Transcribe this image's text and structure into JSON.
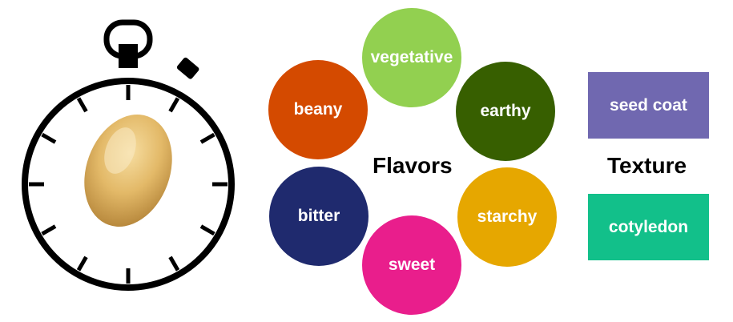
{
  "flavors": {
    "label": "Flavors",
    "items": [
      {
        "text": "vegetative",
        "color": "#92D050"
      },
      {
        "text": "earthy",
        "color": "#375F00"
      },
      {
        "text": "starchy",
        "color": "#E6A700"
      },
      {
        "text": "sweet",
        "color": "#E91E8C"
      },
      {
        "text": "bitter",
        "color": "#1F2A6E"
      },
      {
        "text": "beany",
        "color": "#D44A00"
      }
    ]
  },
  "texture": {
    "label": "Texture",
    "items": [
      {
        "text": "seed coat",
        "color": "#7068B0"
      },
      {
        "text": "cotyledon",
        "color": "#12C08A"
      }
    ]
  },
  "icons": [
    "stopwatch-icon",
    "soybean-icon"
  ]
}
